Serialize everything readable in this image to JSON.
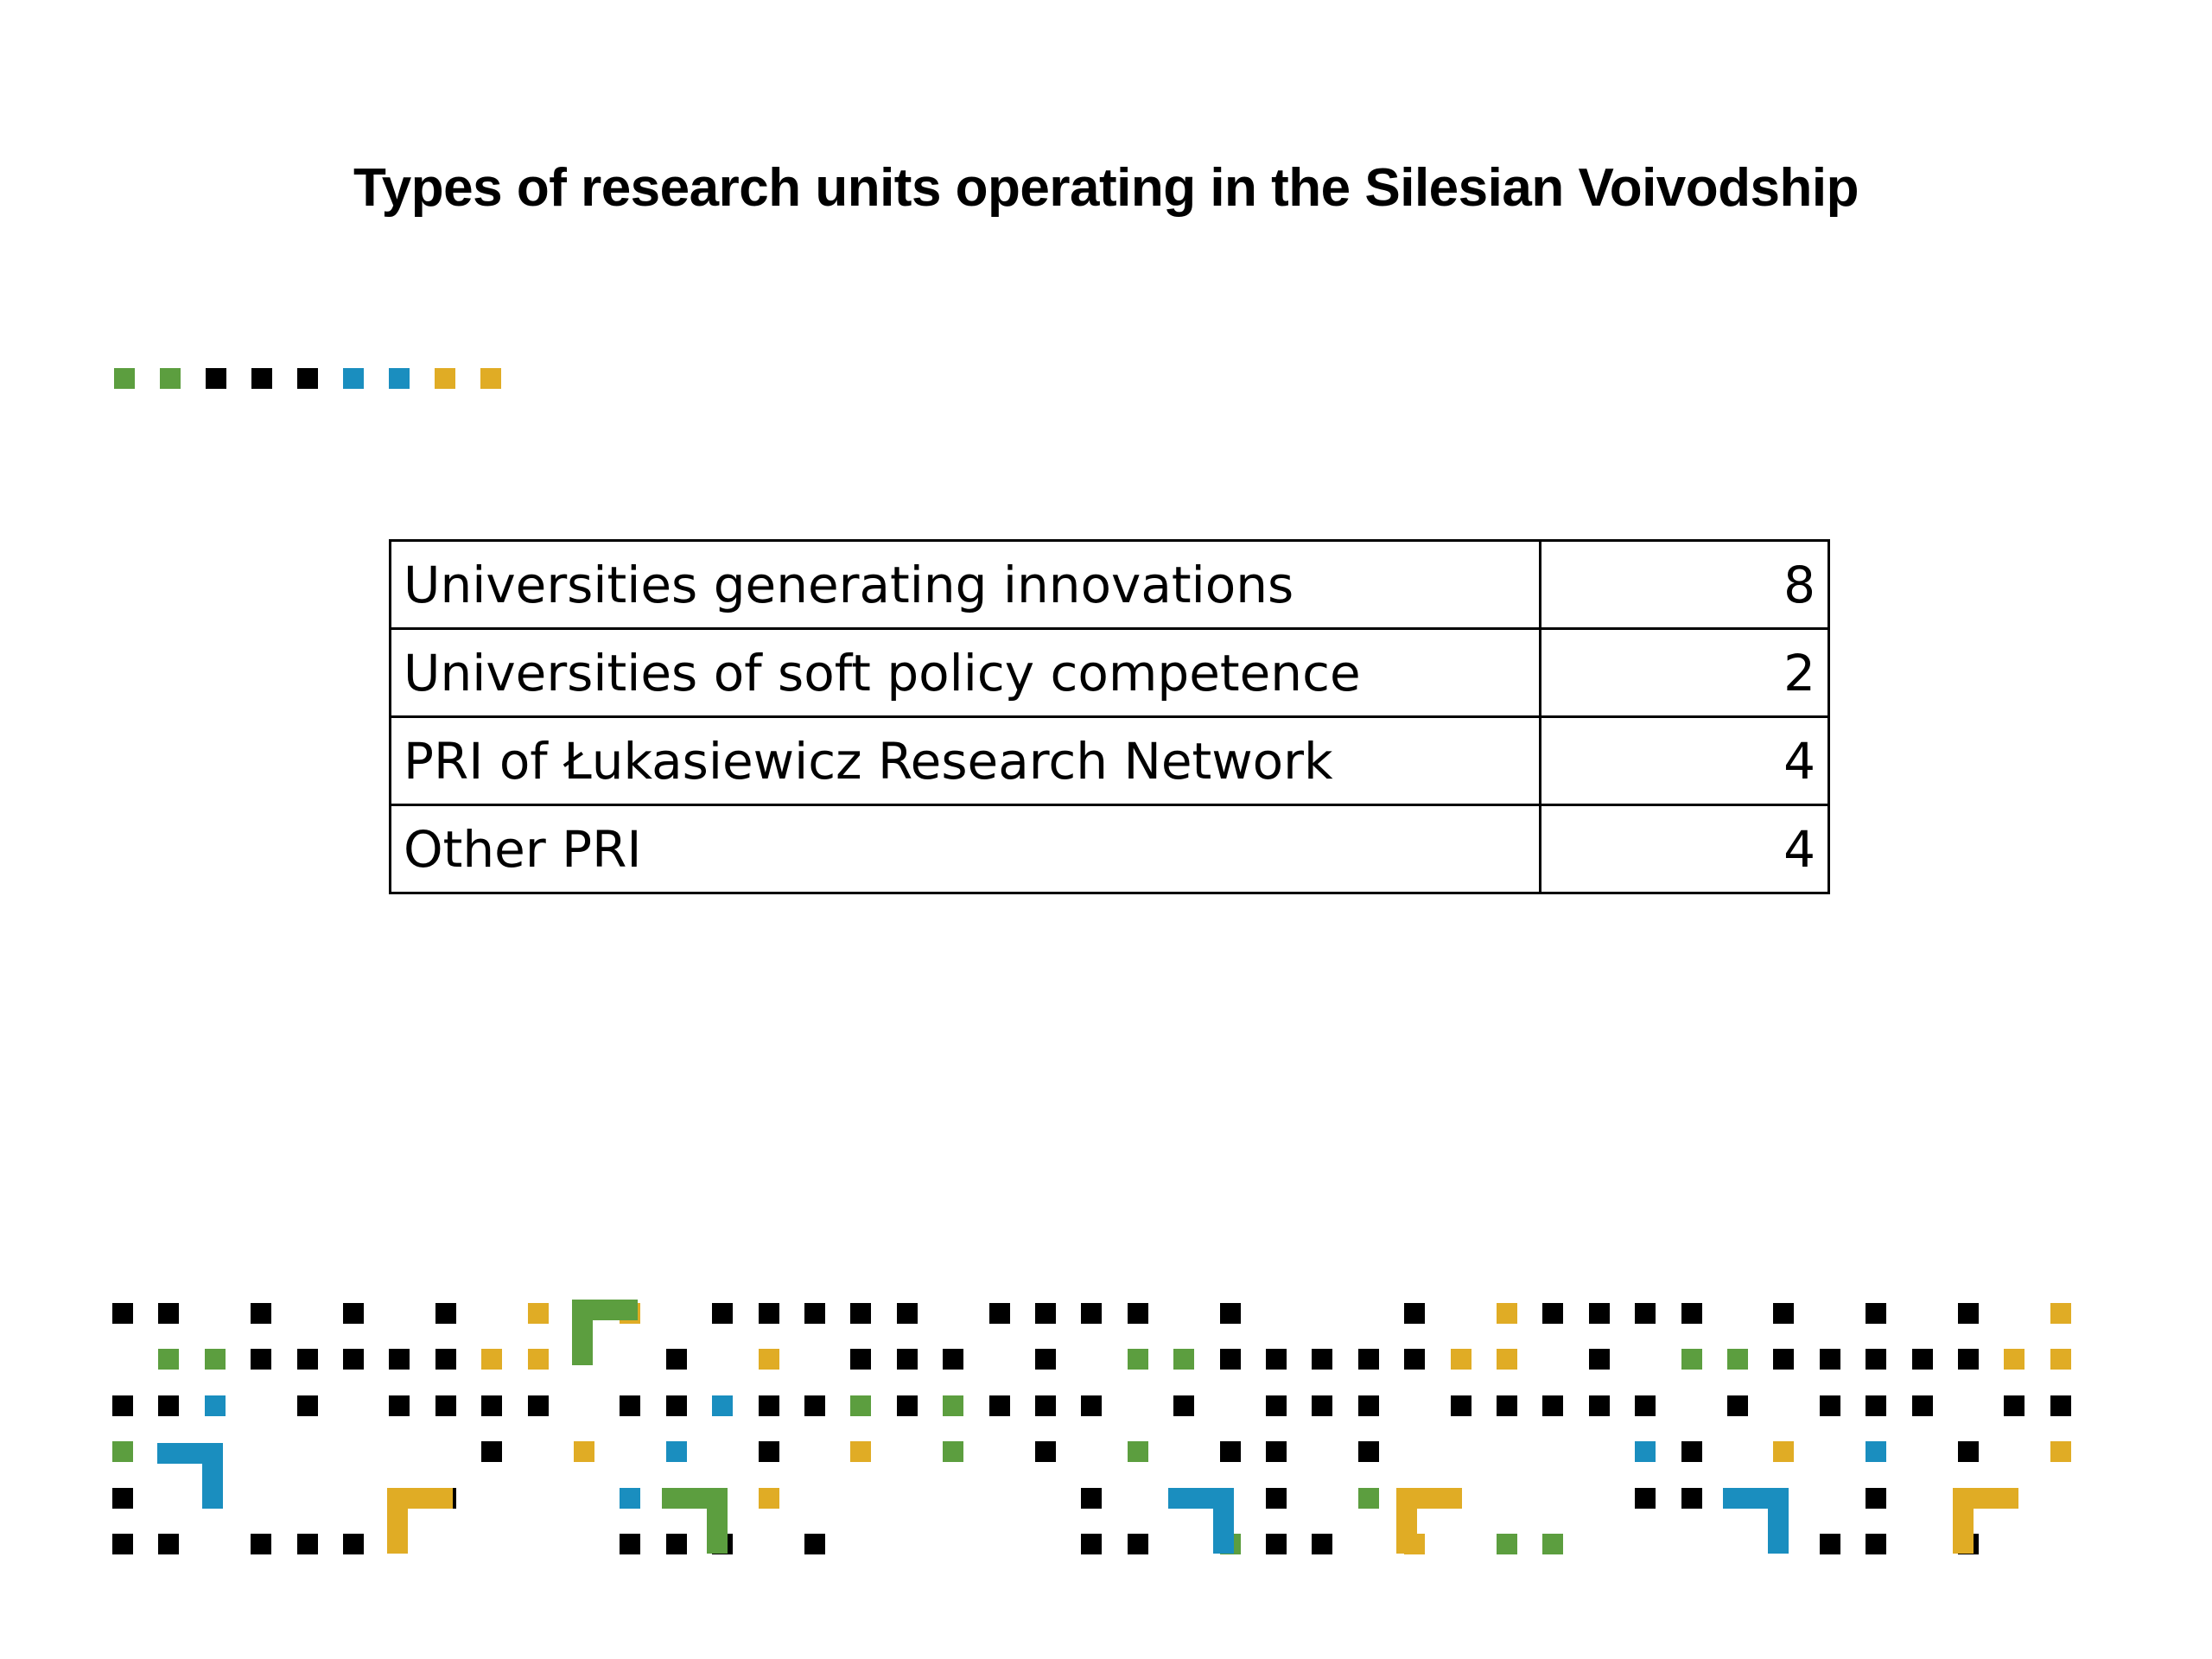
{
  "title": "Types of research units operating in the Silesian Voivodship",
  "colors": {
    "green": "#5c9e3f",
    "black": "#000000",
    "blue": "#1a8ebf",
    "yellow": "#e0ac25"
  },
  "title_rule_colors": [
    "green",
    "green",
    "black",
    "black",
    "black",
    "blue",
    "blue",
    "yellow",
    "yellow"
  ],
  "table": {
    "rows": [
      {
        "label": "Universities generating innovations",
        "count": "8"
      },
      {
        "label": "Universities of soft policy competence",
        "count": "2"
      },
      {
        "label": "PRI of Łukasiewicz Research Network",
        "count": "4"
      },
      {
        "label": "Other PRI",
        "count": "4"
      }
    ]
  }
}
